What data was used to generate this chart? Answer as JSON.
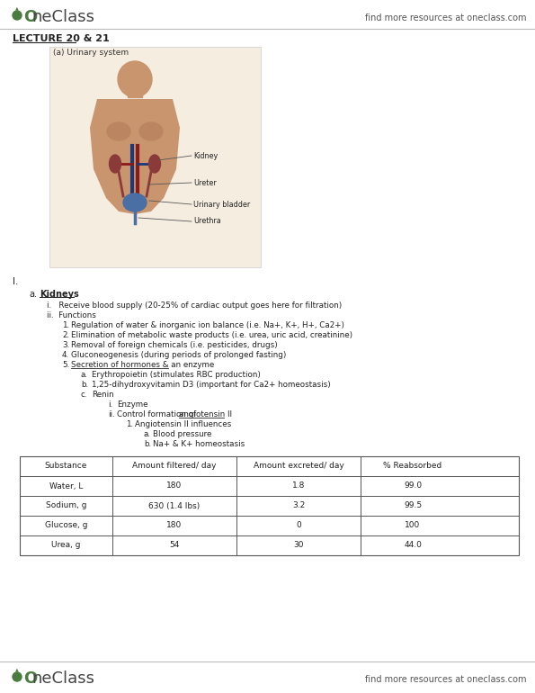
{
  "bg_color": "#ffffff",
  "header_right": "find more resources at oneclass.com",
  "footer_right": "find more resources at oneclass.com",
  "lecture_label": "LECTURE 20 & 21",
  "diagram_label": "(a) Urinary system",
  "outline_number": "I.",
  "section_a": "Kidneys",
  "point_i": "Receive blood supply (20-25% of cardiac output goes here for filtration)",
  "point_ii": "Functions",
  "functions": [
    "Regulation of water & inorganic ion balance (i.e. Na+, K+, H+, Ca2+)",
    "Elimination of metabolic waste products (i.e. urea, uric acid, creatinine)",
    "Removal of foreign chemicals (i.e. pesticides, drugs)",
    "Gluconeogenesis (during periods of prolonged fasting)",
    "Secretion of hormones & an enzyme"
  ],
  "func5_subs": [
    "Erythropoietin (stimulates RBC production)",
    "1,25-dihydroxyvitamin D3 (important for Ca2+ homeostasis)",
    "Renin"
  ],
  "renin_sub_i": "Enzyme",
  "renin_sub_ii_prefix": "Control formation of ",
  "renin_sub_ii_link": "angiotensin II",
  "angiotensin_item": "Angiotensin II influences",
  "angiotensin_influences": [
    "Blood pressure",
    "Na+ & K+ homeostasis"
  ],
  "table_headers": [
    "Substance",
    "Amount filtered/ day",
    "Amount excreted/ day",
    "% Reabsorbed"
  ],
  "table_rows": [
    [
      "Water, L",
      "180",
      "1.8",
      "99.0"
    ],
    [
      "Sodium, g",
      "630 (1.4 lbs)",
      "3.2",
      "99.5"
    ],
    [
      "Glucose, g",
      "180",
      "0",
      "100"
    ],
    [
      "Urea, g",
      "54",
      "30",
      "44.0"
    ]
  ],
  "oneclass_green": "#4a7c3f",
  "text_color": "#222222",
  "border_color": "#bbbbbb",
  "table_border": "#555555"
}
